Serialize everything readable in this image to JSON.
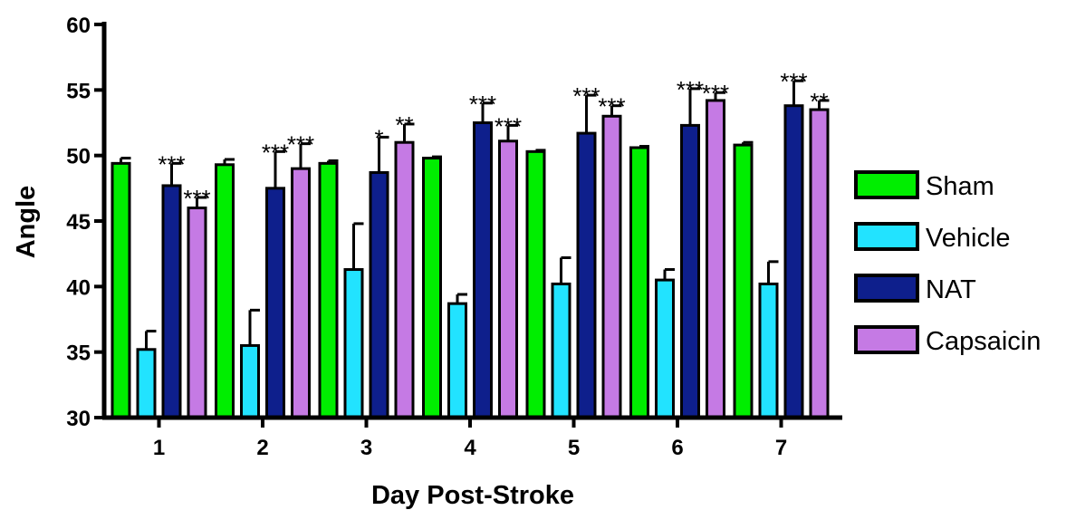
{
  "chart_data": {
    "type": "bar",
    "xlabel": "Day Post-Stroke",
    "ylabel": "Angle",
    "ylim": [
      30,
      60
    ],
    "yticks": [
      "30",
      "35",
      "40",
      "45",
      "50",
      "55",
      "60"
    ],
    "categories": [
      "1",
      "2",
      "3",
      "4",
      "5",
      "6",
      "7"
    ],
    "legend_position": "right",
    "series": [
      {
        "name": "Sham",
        "color": "#00ee00",
        "values": [
          49.4,
          49.3,
          49.4,
          49.8,
          50.3,
          50.6,
          50.8
        ],
        "errors": [
          0.4,
          0.4,
          0.2,
          0.1,
          0.1,
          0.1,
          0.2
        ],
        "sig": [
          "",
          "",
          "",
          "",
          "",
          "",
          ""
        ]
      },
      {
        "name": "Vehicle",
        "color": "#22e3ff",
        "values": [
          35.2,
          35.5,
          41.3,
          38.7,
          40.2,
          40.5,
          40.2
        ],
        "errors": [
          1.4,
          2.7,
          3.5,
          0.7,
          2.0,
          0.8,
          1.7
        ],
        "sig": [
          "",
          "",
          "",
          "",
          "",
          "",
          ""
        ]
      },
      {
        "name": "NAT",
        "color": "#0e1f8c",
        "values": [
          47.7,
          47.5,
          48.7,
          52.5,
          51.7,
          52.3,
          53.8
        ],
        "errors": [
          1.7,
          2.8,
          2.7,
          1.5,
          2.9,
          2.8,
          1.9
        ],
        "sig": [
          "***",
          "***",
          "*",
          "***",
          "***",
          "***",
          "***"
        ]
      },
      {
        "name": "Capsaicin",
        "color": "#c57ae4",
        "values": [
          46.0,
          49.0,
          51.0,
          51.1,
          53.0,
          54.2,
          53.5
        ],
        "errors": [
          0.8,
          1.9,
          1.4,
          1.2,
          0.8,
          0.6,
          0.7
        ],
        "sig": [
          "***",
          "***",
          "**",
          "***",
          "***",
          "***",
          "**"
        ]
      }
    ]
  }
}
